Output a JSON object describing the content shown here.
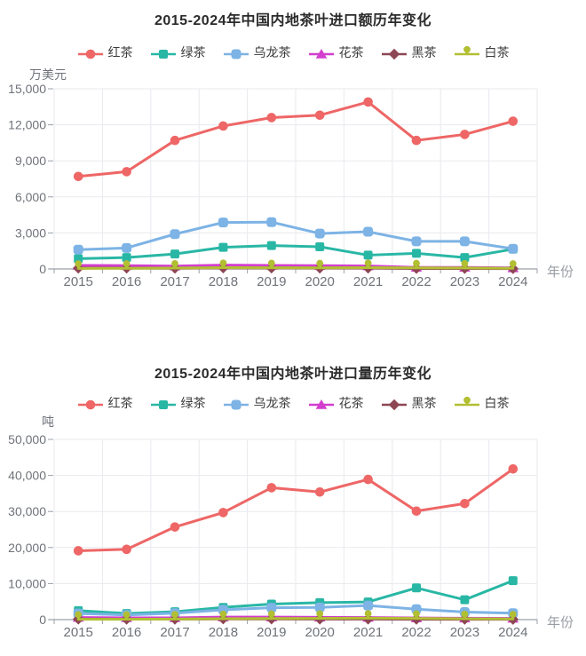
{
  "chart_data": [
    {
      "type": "line",
      "title": "2015-2024年中国内地茶叶进口额历年变化",
      "ylabel": "万美元",
      "xlabel": "年份",
      "categories": [
        "2015",
        "2016",
        "2017",
        "2018",
        "2019",
        "2020",
        "2021",
        "2022",
        "2023",
        "2024"
      ],
      "ylim": [
        0,
        15000
      ],
      "yticks": [
        0,
        3000,
        6000,
        9000,
        12000,
        15000
      ],
      "ytick_labels": [
        "0",
        "3,000",
        "6,000",
        "9,000",
        "12,000",
        "15,000"
      ],
      "grid": true,
      "legend_position": "top",
      "series": [
        {
          "name": "红茶",
          "symbol": "circle",
          "color": "#ee6666",
          "values": [
            7700,
            8100,
            10700,
            11900,
            12600,
            12800,
            13900,
            10700,
            11200,
            12300
          ]
        },
        {
          "name": "绿茶",
          "symbol": "square",
          "color": "#29b7a5",
          "values": [
            860,
            950,
            1250,
            1800,
            1950,
            1850,
            1150,
            1300,
            950,
            1650
          ]
        },
        {
          "name": "乌龙茶",
          "symbol": "roundRect",
          "color": "#7db3e5",
          "values": [
            1610,
            1750,
            2900,
            3870,
            3900,
            2950,
            3100,
            2300,
            2300,
            1680
          ]
        },
        {
          "name": "花茶",
          "symbol": "triangle",
          "color": "#d23fce",
          "values": [
            300,
            280,
            240,
            320,
            300,
            280,
            250,
            130,
            130,
            90
          ]
        },
        {
          "name": "黑茶",
          "symbol": "diamond",
          "color": "#8d4653",
          "values": [
            70,
            70,
            60,
            90,
            80,
            70,
            70,
            40,
            40,
            30
          ]
        },
        {
          "name": "白茶",
          "symbol": "pin",
          "color": "#b2bf33",
          "values": [
            50,
            60,
            70,
            110,
            100,
            90,
            110,
            90,
            80,
            60
          ]
        }
      ]
    },
    {
      "type": "line",
      "title": "2015-2024年中国内地茶叶进口量历年变化",
      "ylabel": "吨",
      "xlabel": "年份",
      "categories": [
        "2015",
        "2016",
        "2017",
        "2018",
        "2019",
        "2020",
        "2021",
        "2022",
        "2023",
        "2024"
      ],
      "ylim": [
        0,
        50000
      ],
      "yticks": [
        0,
        10000,
        20000,
        30000,
        40000,
        50000
      ],
      "ytick_labels": [
        "0",
        "10,000",
        "20,000",
        "30,000",
        "40,000",
        "50,000"
      ],
      "grid": true,
      "legend_position": "top",
      "series": [
        {
          "name": "红茶",
          "symbol": "circle",
          "color": "#ee6666",
          "values": [
            19100,
            19500,
            25700,
            29700,
            36600,
            35400,
            38900,
            30100,
            32200,
            41800
          ]
        },
        {
          "name": "绿茶",
          "symbol": "square",
          "color": "#29b7a5",
          "values": [
            2500,
            1700,
            2200,
            3400,
            4300,
            4700,
            4900,
            8800,
            5500,
            10800
          ]
        },
        {
          "name": "乌龙茶",
          "symbol": "roundRect",
          "color": "#7db3e5",
          "values": [
            1700,
            1300,
            1800,
            2700,
            3300,
            3400,
            3900,
            2900,
            2100,
            1800
          ]
        },
        {
          "name": "花茶",
          "symbol": "triangle",
          "color": "#d23fce",
          "values": [
            600,
            500,
            500,
            700,
            700,
            650,
            600,
            450,
            400,
            350
          ]
        },
        {
          "name": "黑茶",
          "symbol": "diamond",
          "color": "#8d4653",
          "values": [
            150,
            120,
            120,
            200,
            180,
            150,
            150,
            100,
            100,
            80
          ]
        },
        {
          "name": "白茶",
          "symbol": "pin",
          "color": "#b2bf33",
          "values": [
            100,
            100,
            150,
            250,
            300,
            350,
            400,
            350,
            250,
            200
          ]
        }
      ]
    }
  ],
  "colors": {
    "grid_line": "#e8eaee",
    "axis_line": "#9aa0a8",
    "tick_label": "#6f7379",
    "title_text": "#2b2b2b",
    "legend_text": "#3a3a3a"
  }
}
